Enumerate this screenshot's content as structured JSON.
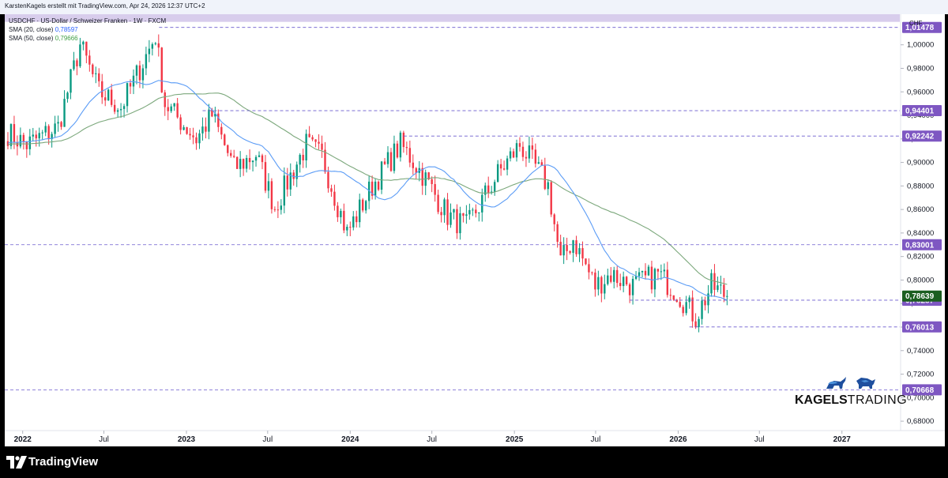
{
  "header": {
    "credit": "KarstenKagels erstellt mit TradingView.com, Apr 24, 2026 12:37 UTC+2"
  },
  "legend": {
    "title": "USDCHF · US-Dollar / Schweizer Franken · 1W · FXCM",
    "sma20_label": "SMA (20, close)",
    "sma20_value": "0,78597",
    "sma50_label": "SMA (50, close)",
    "sma50_value": "0,79666"
  },
  "axis": {
    "currency": "CHF"
  },
  "branding": {
    "logo_bold": "KAGELS",
    "logo_light": "TRADING",
    "footer_name": "TradingView"
  },
  "colors": {
    "up": "#089981",
    "down": "#f23645",
    "sma20": "#5b9cf6",
    "sma50": "#7ca87c",
    "level_line": "#6a5acd",
    "level_label": "#7e57c2",
    "price_label": "#1b5e20",
    "zone": "#d1c4e9"
  },
  "chart_data": {
    "type": "candlestick",
    "title": "USDCHF · US-Dollar / Schweizer Franken · 1W · FXCM",
    "y_axis_unit": "CHF",
    "y_range": [
      0.672,
      1.026
    ],
    "x_range": [
      "2021-11-22",
      "2027-05-10"
    ],
    "y_ticks": [
      "1,00000",
      "0,98000",
      "0,96000",
      "0,94000",
      "0,92000",
      "0,90000",
      "0,88000",
      "0,86000",
      "0,84000",
      "0,82000",
      "0,80000",
      "0,78000",
      "0,76000",
      "0,74000",
      "0,72000",
      "0,70000",
      "0,68000"
    ],
    "y_tick_values": [
      1.0,
      0.98,
      0.96,
      0.94,
      0.92,
      0.9,
      0.88,
      0.86,
      0.84,
      0.82,
      0.8,
      0.78,
      0.76,
      0.74,
      0.72,
      0.7,
      0.68
    ],
    "x_ticks": [
      {
        "label": "2022",
        "date": "2022-01-01",
        "bold": true
      },
      {
        "label": "Jul",
        "date": "2022-07-01",
        "bold": false
      },
      {
        "label": "2023",
        "date": "2023-01-01",
        "bold": true
      },
      {
        "label": "Jul",
        "date": "2023-07-01",
        "bold": false
      },
      {
        "label": "2024",
        "date": "2024-01-01",
        "bold": true
      },
      {
        "label": "Jul",
        "date": "2024-07-01",
        "bold": false
      },
      {
        "label": "2025",
        "date": "2025-01-01",
        "bold": true
      },
      {
        "label": "Jul",
        "date": "2025-07-01",
        "bold": false
      },
      {
        "label": "2026",
        "date": "2026-01-01",
        "bold": true
      },
      {
        "label": "Jul",
        "date": "2026-07-01",
        "bold": false
      },
      {
        "label": "2027",
        "date": "2027-01-01",
        "bold": true
      }
    ],
    "levels": [
      {
        "value": 1.01478,
        "label": "1,01478",
        "start": "2022-11-01"
      },
      {
        "value": 0.94401,
        "label": "0,94401",
        "start": "2023-02-06"
      },
      {
        "value": 0.92242,
        "label": "0,92242",
        "start": "2024-04-29"
      },
      {
        "value": 0.83001,
        "label": "0,83001",
        "start": "2021-11-22"
      },
      {
        "value": 0.78287,
        "label": "0,78287",
        "start": "2025-09-15"
      },
      {
        "value": 0.76013,
        "label": "0,76013",
        "start": "2026-01-26"
      },
      {
        "value": 0.70668,
        "label": "0,70668",
        "start": "2021-11-22"
      }
    ],
    "zone": {
      "from": 1.0195,
      "to": 1.0335
    },
    "last_price": {
      "value": 0.78639,
      "label": "0,78639"
    },
    "key_points": [
      {
        "date": "2021-11-29",
        "close": 0.925
      },
      {
        "date": "2022-01-10",
        "close": 0.915
      },
      {
        "date": "2022-03-21",
        "close": 0.93
      },
      {
        "date": "2022-05-09",
        "close": 1.0
      },
      {
        "date": "2022-06-20",
        "close": 0.96
      },
      {
        "date": "2022-08-08",
        "close": 0.947
      },
      {
        "date": "2022-09-26",
        "close": 0.985
      },
      {
        "date": "2022-10-24",
        "close": 1.008
      },
      {
        "date": "2022-11-14",
        "close": 0.95
      },
      {
        "date": "2023-01-23",
        "close": 0.92
      },
      {
        "date": "2023-02-27",
        "close": 0.94
      },
      {
        "date": "2023-04-17",
        "close": 0.895
      },
      {
        "date": "2023-06-05",
        "close": 0.907
      },
      {
        "date": "2023-07-17",
        "close": 0.862
      },
      {
        "date": "2023-09-25",
        "close": 0.915
      },
      {
        "date": "2023-10-30",
        "close": 0.905
      },
      {
        "date": "2023-12-25",
        "close": 0.84
      },
      {
        "date": "2024-02-19",
        "close": 0.88
      },
      {
        "date": "2024-04-22",
        "close": 0.915
      },
      {
        "date": "2024-05-13",
        "close": 0.905
      },
      {
        "date": "2024-06-10",
        "close": 0.89
      },
      {
        "date": "2024-08-05",
        "close": 0.855
      },
      {
        "date": "2024-09-16",
        "close": 0.845
      },
      {
        "date": "2024-11-25",
        "close": 0.89
      },
      {
        "date": "2025-01-13",
        "close": 0.915
      },
      {
        "date": "2025-02-10",
        "close": 0.9
      },
      {
        "date": "2025-03-17",
        "close": 0.88
      },
      {
        "date": "2025-04-14",
        "close": 0.815
      },
      {
        "date": "2025-05-12",
        "close": 0.835
      },
      {
        "date": "2025-06-30",
        "close": 0.795
      },
      {
        "date": "2025-08-04",
        "close": 0.805
      },
      {
        "date": "2025-09-22",
        "close": 0.795
      },
      {
        "date": "2025-11-17",
        "close": 0.805
      },
      {
        "date": "2025-12-29",
        "close": 0.79
      },
      {
        "date": "2026-02-09",
        "close": 0.768
      },
      {
        "date": "2026-03-16",
        "close": 0.795
      },
      {
        "date": "2026-04-06",
        "close": 0.79
      },
      {
        "date": "2026-04-20",
        "close": 0.786
      }
    ],
    "sma20_last": 0.78597,
    "sma50_last": 0.79666
  }
}
